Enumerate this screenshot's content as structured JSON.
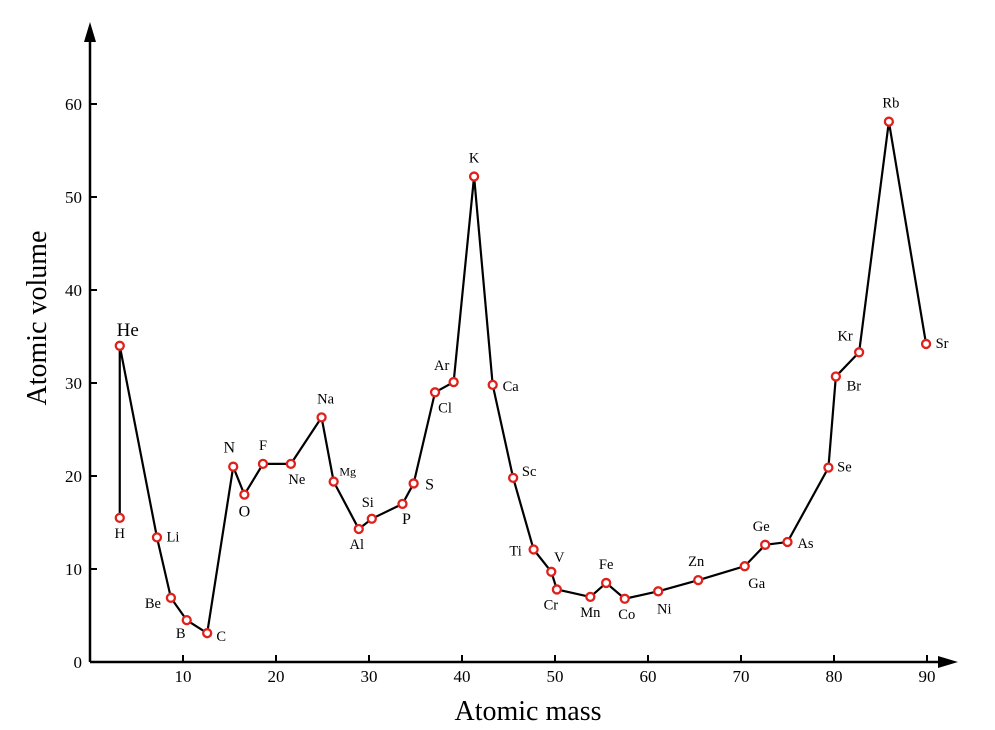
{
  "chart_data": {
    "type": "line",
    "title": "",
    "xlabel": "Atomic mass",
    "ylabel": "Atomic volume",
    "xlim": [
      0,
      93
    ],
    "ylim": [
      0,
      68
    ],
    "xticks": [
      10,
      20,
      30,
      40,
      50,
      60,
      70,
      80,
      90
    ],
    "yticks": [
      0,
      10,
      20,
      30,
      40,
      50,
      60
    ],
    "grid": false,
    "legend": "none",
    "colors": {
      "line": "#000000",
      "marker_edge": "#e0201b",
      "marker_fill": "#ffffff"
    },
    "points": [
      {
        "label": "H",
        "x": 3.2,
        "y": 15.5
      },
      {
        "label": "He",
        "x": 3.2,
        "y": 34.0
      },
      {
        "label": "Li",
        "x": 7.2,
        "y": 13.4
      },
      {
        "label": "Be",
        "x": 8.7,
        "y": 6.9
      },
      {
        "label": "B",
        "x": 10.4,
        "y": 4.5
      },
      {
        "label": "C",
        "x": 12.6,
        "y": 3.1
      },
      {
        "label": "N",
        "x": 15.4,
        "y": 21.0
      },
      {
        "label": "O",
        "x": 16.6,
        "y": 18.0
      },
      {
        "label": "F",
        "x": 18.6,
        "y": 21.3
      },
      {
        "label": "Ne",
        "x": 21.6,
        "y": 21.3
      },
      {
        "label": "Na",
        "x": 24.9,
        "y": 26.3
      },
      {
        "label": "Mg",
        "x": 26.2,
        "y": 19.4
      },
      {
        "label": "Al",
        "x": 28.9,
        "y": 14.3
      },
      {
        "label": "Si",
        "x": 30.3,
        "y": 15.4
      },
      {
        "label": "P",
        "x": 33.6,
        "y": 17.0
      },
      {
        "label": "S",
        "x": 34.8,
        "y": 19.2
      },
      {
        "label": "Cl",
        "x": 37.1,
        "y": 29.0
      },
      {
        "label": "Ar",
        "x": 39.1,
        "y": 30.1
      },
      {
        "label": "K",
        "x": 41.3,
        "y": 52.2
      },
      {
        "label": "Ca",
        "x": 43.3,
        "y": 29.8
      },
      {
        "label": "Sc",
        "x": 45.5,
        "y": 19.8
      },
      {
        "label": "Ti",
        "x": 47.7,
        "y": 12.1
      },
      {
        "label": "V",
        "x": 49.6,
        "y": 9.7
      },
      {
        "label": "Cr",
        "x": 50.2,
        "y": 7.8
      },
      {
        "label": "Mn",
        "x": 53.8,
        "y": 7.0
      },
      {
        "label": "Fe",
        "x": 55.5,
        "y": 8.5
      },
      {
        "label": "Co",
        "x": 57.5,
        "y": 6.8
      },
      {
        "label": "Ni",
        "x": 61.1,
        "y": 7.6
      },
      {
        "label": "Zn",
        "x": 65.4,
        "y": 8.8
      },
      {
        "label": "Ga",
        "x": 70.4,
        "y": 10.3
      },
      {
        "label": "Ge",
        "x": 72.6,
        "y": 12.6
      },
      {
        "label": "As",
        "x": 75.0,
        "y": 12.9
      },
      {
        "label": "Se",
        "x": 79.4,
        "y": 20.9
      },
      {
        "label": "Br",
        "x": 80.2,
        "y": 30.7
      },
      {
        "label": "Kr",
        "x": 82.7,
        "y": 33.3
      },
      {
        "label": "Rb",
        "x": 85.9,
        "y": 58.1
      },
      {
        "label": "Sr",
        "x": 89.9,
        "y": 34.2
      }
    ]
  }
}
